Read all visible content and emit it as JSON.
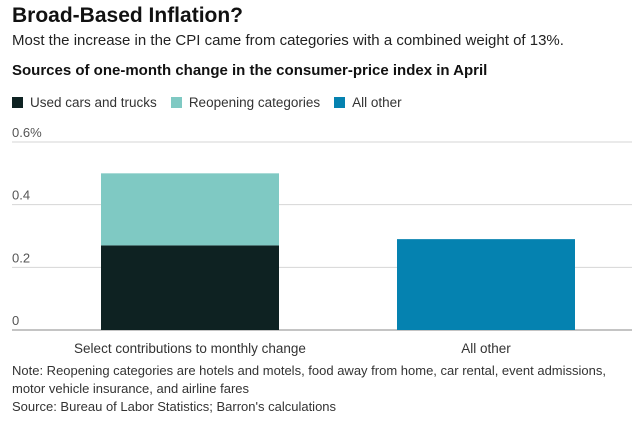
{
  "header": {
    "title": "Broad-Based Inflation?",
    "subtitle": "Most the increase in the CPI came from categories with a combined weight of 13%.",
    "chart_title": "Sources of one-month change in the consumer-price index in April"
  },
  "legend": [
    {
      "label": "Used cars and trucks",
      "color": "#0e2222"
    },
    {
      "label": "Reopening categories",
      "color": "#7fc9c3"
    },
    {
      "label": "All other",
      "color": "#0582b0"
    }
  ],
  "chart_data": {
    "type": "bar",
    "stacked": true,
    "categories": [
      "Select contributions to monthly change",
      "All other"
    ],
    "series": [
      {
        "name": "Used cars and trucks",
        "values": [
          0.27,
          0
        ],
        "color": "#0e2222"
      },
      {
        "name": "Reopening categories",
        "values": [
          0.23,
          0
        ],
        "color": "#7fc9c3"
      },
      {
        "name": "All other",
        "values": [
          0,
          0.29
        ],
        "color": "#0582b0"
      }
    ],
    "ylim": [
      0,
      0.6
    ],
    "yticks": [
      {
        "value": 0,
        "label": "0"
      },
      {
        "value": 0.2,
        "label": "0.2"
      },
      {
        "value": 0.4,
        "label": "0.4"
      },
      {
        "value": 0.6,
        "label": "0.6%"
      }
    ],
    "grid": true
  },
  "footer": {
    "note": "Note: Reopening categories are hotels and motels, food away from home, car rental, event admissions, motor vehicle insurance, and airline fares",
    "source": "Source: Bureau of Labor Statistics; Barron's calculations"
  }
}
